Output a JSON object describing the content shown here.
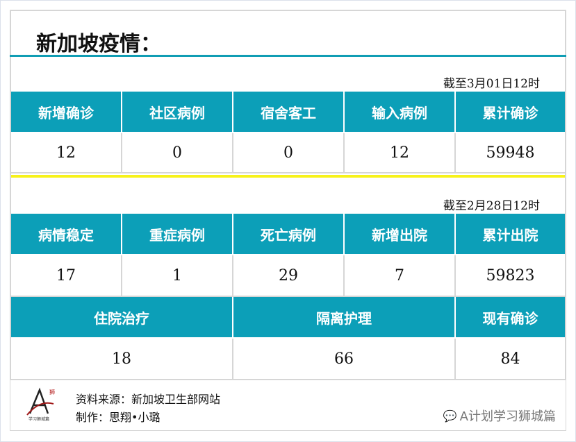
{
  "title": "新加坡疫情：",
  "section1": {
    "date": "截至3月01日12时",
    "headers": [
      "新增确诊",
      "社区病例",
      "宿舍客工",
      "输入病例",
      "累计确诊"
    ],
    "values": [
      "12",
      "0",
      "0",
      "12",
      "59948"
    ]
  },
  "section2": {
    "date": "截至2月28日12时",
    "headers": [
      "病情稳定",
      "重症病例",
      "死亡病例",
      "新增出院",
      "累计出院"
    ],
    "values": [
      "17",
      "1",
      "29",
      "7",
      "59823"
    ],
    "headers2": [
      "住院治疗",
      "隔离护理",
      "现有确诊"
    ],
    "values2": [
      "18",
      "66",
      "84"
    ]
  },
  "footer": {
    "source": "资料来源：新加坡卫生部网站",
    "author": "制作：思翔•小璐",
    "logo_text": "学习狮城篇",
    "watermark": "A计划学习狮城篇"
  },
  "colors": {
    "accent": "#0c9fb8",
    "divider": "#f7f21a"
  }
}
